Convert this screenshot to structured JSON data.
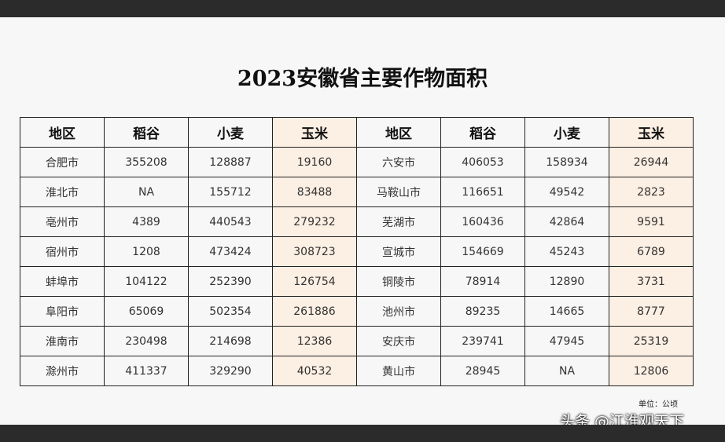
{
  "title": "2023安徽省主要作物面积",
  "headers": [
    "地区",
    "稻谷",
    "小麦",
    "玉米",
    "地区",
    "稻谷",
    "小麦",
    "玉米"
  ],
  "rows": [
    [
      "合肥市",
      "355208",
      "128887",
      "19160",
      "六安市",
      "406053",
      "158934",
      "26944"
    ],
    [
      "淮北市",
      "NA",
      "155712",
      "83488",
      "马鞍山市",
      "116651",
      "49542",
      "2823"
    ],
    [
      "亳州市",
      "4389",
      "440543",
      "279232",
      "芜湖市",
      "160436",
      "42864",
      "9591"
    ],
    [
      "宿州市",
      "1208",
      "473424",
      "308723",
      "宣城市",
      "154669",
      "45243",
      "6789"
    ],
    [
      "蚌埠市",
      "104122",
      "252390",
      "126754",
      "铜陵市",
      "78914",
      "12890",
      "3731"
    ],
    [
      "阜阳市",
      "65069",
      "502354",
      "261886",
      "池州市",
      "89235",
      "14665",
      "8777"
    ],
    [
      "淮南市",
      "230498",
      "214698",
      "12386",
      "安庆市",
      "239741",
      "47945",
      "25319"
    ],
    [
      "滁州市",
      "411337",
      "329290",
      "40532",
      "黄山市",
      "28945",
      "NA",
      "12806"
    ]
  ],
  "unit_label": "单位：公顷",
  "watermark": "头条 @江淮观天下",
  "colors": {
    "corn_column_bg": "#fcefe3",
    "border": "#222222"
  }
}
